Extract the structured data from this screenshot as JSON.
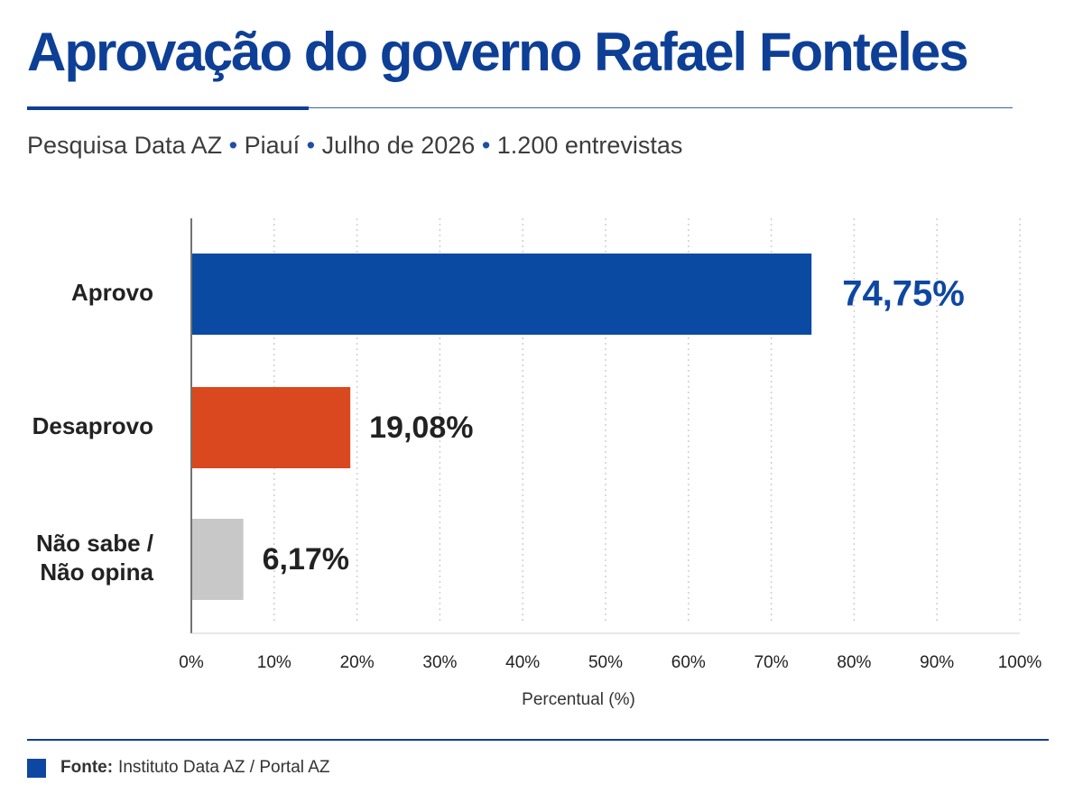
{
  "title": "Aprovação do governo Rafael Fonteles",
  "subtitle": {
    "parts": [
      "Pesquisa Data AZ",
      "Piauí",
      "Julho de 2026",
      "1.200 entrevistas"
    ],
    "separator": "•"
  },
  "footer": {
    "label": "Fonte:",
    "text": "Instituto Data AZ / Portal AZ",
    "accent_color": "#0d47a1"
  },
  "chart_data": {
    "type": "bar",
    "orientation": "horizontal",
    "categories": [
      [
        "Aprovo"
      ],
      [
        "Desaprovo"
      ],
      [
        "Não sabe /",
        "Não opina"
      ]
    ],
    "values": [
      74.75,
      19.08,
      6.17
    ],
    "value_labels": [
      "74,75%",
      "19,08%",
      "6,17%"
    ],
    "colors": [
      "#0b4aa2",
      "#d9481e",
      "#c8c8c8"
    ],
    "label_colors": [
      "#0d47a1",
      "#222222",
      "#222222"
    ],
    "xlabel": "Percentual (%)",
    "xlim": [
      0,
      100
    ],
    "ticks": [
      0,
      10,
      20,
      30,
      40,
      50,
      60,
      70,
      80,
      90,
      100
    ],
    "tick_labels": [
      "0%",
      "10%",
      "20%",
      "30%",
      "40%",
      "50%",
      "60%",
      "70%",
      "80%",
      "90%",
      "100%"
    ],
    "grid": true,
    "legend": false
  }
}
